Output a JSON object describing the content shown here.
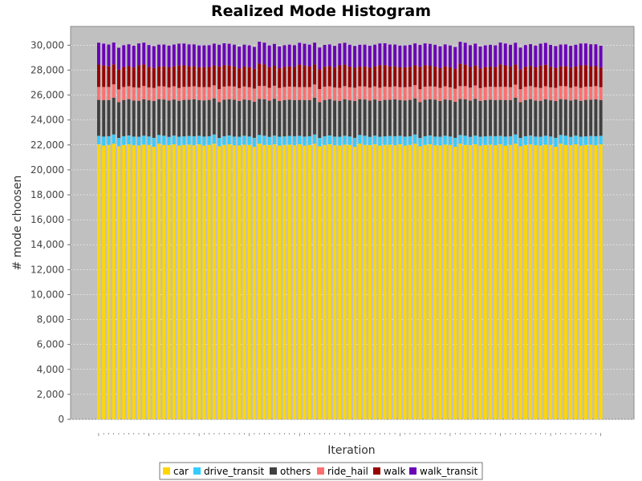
{
  "chart_data": {
    "type": "bar",
    "stacked": true,
    "title": "Realized Mode Histogram",
    "xlabel": "Iteration",
    "ylabel": "# mode choosen",
    "ylim": [
      0,
      31500
    ],
    "yticks": [
      "0",
      "2,000",
      "4,000",
      "6,000",
      "8,000",
      "10,000",
      "12,000",
      "14,000",
      "16,000",
      "18,000",
      "20,000",
      "22,000",
      "24,000",
      "26,000",
      "28,000",
      "30,000"
    ],
    "category_count": 101,
    "legend_position": "bottom",
    "plot_background": "#c0c0c0",
    "series": [
      {
        "name": "car",
        "color": "#ffd700",
        "value": 22000,
        "variation": [
          22050,
          21950,
          22000,
          22100,
          21900,
          22000,
          22050,
          21980,
          21960,
          22020,
          22000,
          21850,
          22100,
          22000,
          21990,
          22050,
          21950,
          22000,
          22020,
          21980
        ]
      },
      {
        "name": "drive_transit",
        "color": "#33ccff",
        "value": 700,
        "variation": [
          680,
          720,
          700,
          740,
          660,
          700,
          710,
          690,
          700,
          720
        ]
      },
      {
        "name": "others",
        "color": "#404040",
        "value": 2900,
        "variation": [
          2880,
          2920,
          2900,
          2950,
          2870,
          2900,
          2910,
          2890
        ]
      },
      {
        "name": "ride_hail",
        "color": "#ff6f6f",
        "value": 1050,
        "variation": [
          1040,
          1060,
          1050,
          1070,
          1030,
          1050
        ]
      },
      {
        "name": "walk",
        "color": "#990000",
        "value": 1600,
        "variation": [
          1800,
          1720,
          1650,
          1600,
          1580,
          1600,
          1610,
          1590
        ]
      },
      {
        "name": "walk_transit",
        "color": "#6a00b8",
        "value": 1750,
        "variation": [
          1750,
          1750,
          1750,
          1750
        ]
      }
    ]
  }
}
